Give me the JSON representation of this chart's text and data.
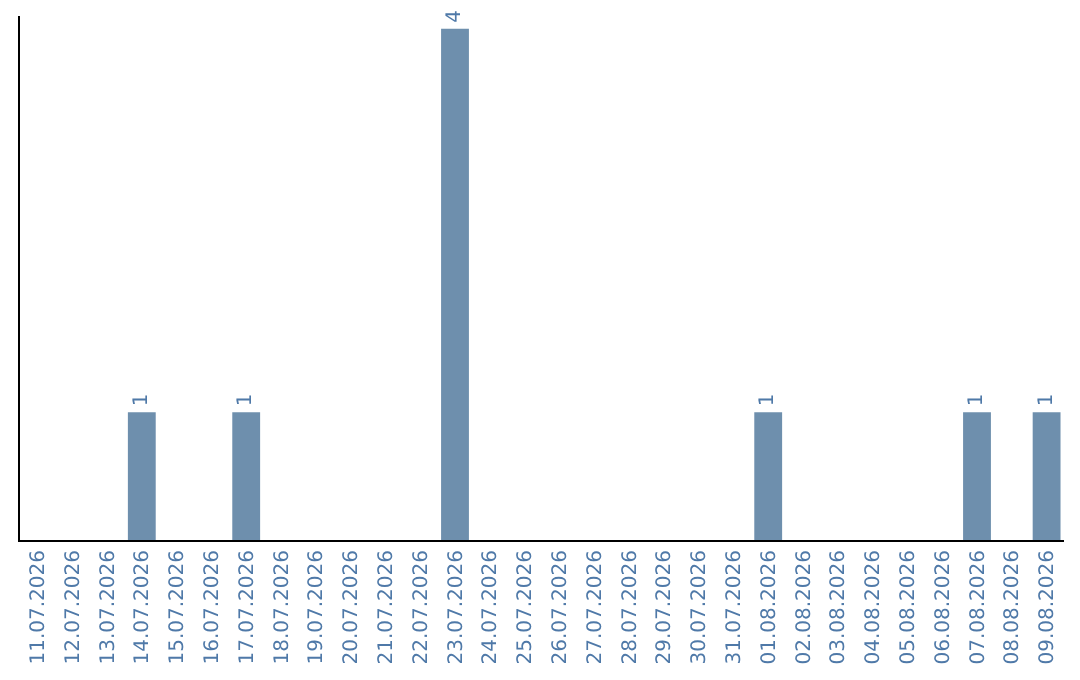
{
  "chart_data": {
    "type": "bar",
    "categories": [
      "11.07.2026",
      "12.07.2026",
      "13.07.2026",
      "14.07.2026",
      "15.07.2026",
      "16.07.2026",
      "17.07.2026",
      "18.07.2026",
      "19.07.2026",
      "20.07.2026",
      "21.07.2026",
      "22.07.2026",
      "23.07.2026",
      "24.07.2026",
      "25.07.2026",
      "26.07.2026",
      "27.07.2026",
      "28.07.2026",
      "29.07.2026",
      "30.07.2026",
      "31.07.2026",
      "01.08.2026",
      "02.08.2026",
      "03.08.2026",
      "04.08.2026",
      "05.08.2026",
      "06.08.2026",
      "07.08.2026",
      "08.08.2026",
      "09.08.2026"
    ],
    "values": [
      0,
      0,
      0,
      1,
      0,
      0,
      1,
      0,
      0,
      0,
      0,
      0,
      4,
      0,
      0,
      0,
      0,
      0,
      0,
      0,
      0,
      1,
      0,
      0,
      0,
      0,
      0,
      1,
      0,
      1
    ],
    "value_labels": [
      null,
      null,
      null,
      "1",
      null,
      null,
      "1",
      null,
      null,
      null,
      null,
      null,
      "4",
      null,
      null,
      null,
      null,
      null,
      null,
      null,
      null,
      "1",
      null,
      null,
      null,
      null,
      null,
      "1",
      null,
      "1"
    ],
    "color": "#6e8fad",
    "ylim": [
      0,
      4.1
    ],
    "tick_labels": "x",
    "grid": false,
    "legend": false
  }
}
